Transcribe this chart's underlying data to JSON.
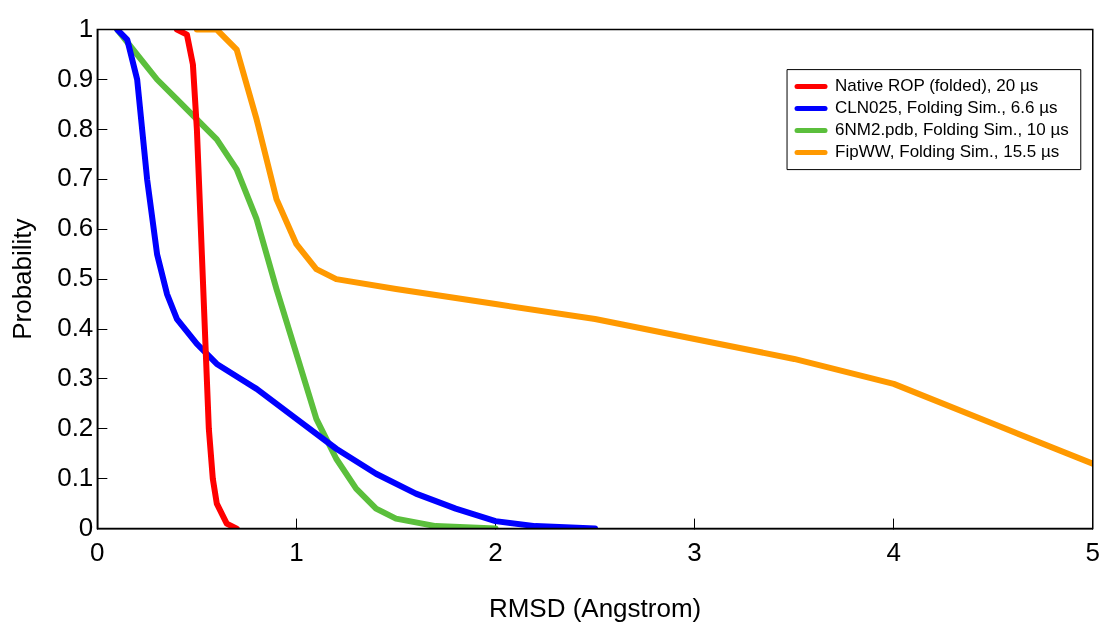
{
  "chart_data": {
    "type": "line",
    "xlabel": "RMSD (Angstrom)",
    "ylabel": "Probability",
    "xlim": [
      0,
      5
    ],
    "ylim": [
      0,
      1
    ],
    "xticks": [
      0,
      1,
      2,
      3,
      4,
      5
    ],
    "yticks": [
      0,
      0.1,
      0.2,
      0.3,
      0.4,
      0.5,
      0.6,
      0.7,
      0.8,
      0.9,
      1
    ],
    "grid": false,
    "legend": "top right",
    "marker": "none",
    "line_style": "solid",
    "series": [
      {
        "name": "Native ROP (folded), 20 µs",
        "color": "#ff0000",
        "x": [
          0.4,
          0.45,
          0.48,
          0.5,
          0.52,
          0.54,
          0.56,
          0.58,
          0.6,
          0.65,
          0.7
        ],
        "values": [
          1,
          0.99,
          0.93,
          0.8,
          0.6,
          0.4,
          0.2,
          0.1,
          0.05,
          0.01,
          0
        ]
      },
      {
        "name": "CLN025, Folding Sim., 6.6 µs",
        "color": "#0000ff",
        "x": [
          0.1,
          0.15,
          0.2,
          0.25,
          0.3,
          0.35,
          0.4,
          0.5,
          0.6,
          0.8,
          1.0,
          1.2,
          1.4,
          1.6,
          1.8,
          2.0,
          2.2,
          2.5
        ],
        "values": [
          1,
          0.98,
          0.9,
          0.7,
          0.55,
          0.47,
          0.42,
          0.37,
          0.33,
          0.28,
          0.22,
          0.16,
          0.11,
          0.07,
          0.04,
          0.015,
          0.005,
          0
        ]
      },
      {
        "name": "6NM2.pdb, Folding Sim., 10 µs",
        "color": "#5bbf3c",
        "x": [
          0.1,
          0.2,
          0.3,
          0.4,
          0.5,
          0.6,
          0.7,
          0.8,
          0.9,
          1.0,
          1.1,
          1.2,
          1.3,
          1.4,
          1.5,
          1.7,
          2.0
        ],
        "values": [
          1,
          0.95,
          0.9,
          0.86,
          0.82,
          0.78,
          0.72,
          0.62,
          0.48,
          0.35,
          0.22,
          0.14,
          0.08,
          0.04,
          0.02,
          0.005,
          0
        ]
      },
      {
        "name": "FipWW, Folding Sim., 15.5 µs",
        "color": "#ff9900",
        "x": [
          0.5,
          0.6,
          0.7,
          0.8,
          0.9,
          1.0,
          1.1,
          1.2,
          1.5,
          2,
          2.5,
          3,
          3.5,
          4,
          4.5,
          5
        ],
        "values": [
          1,
          1,
          0.96,
          0.82,
          0.66,
          0.57,
          0.52,
          0.5,
          0.48,
          0.45,
          0.42,
          0.38,
          0.34,
          0.29,
          0.21,
          0.13
        ]
      }
    ]
  }
}
